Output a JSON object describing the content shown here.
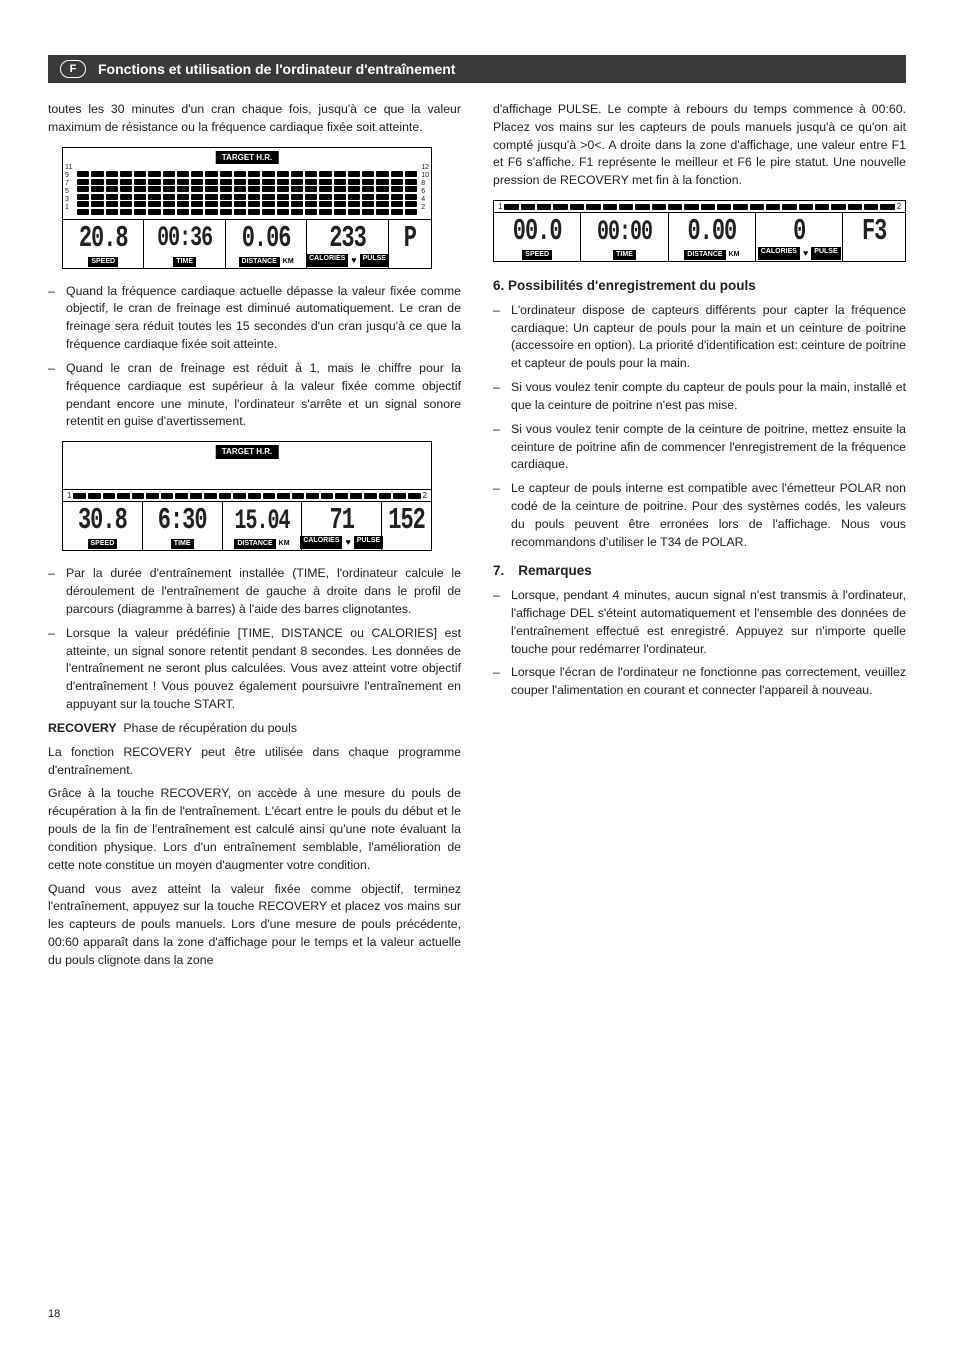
{
  "header": {
    "lang_badge": "F",
    "title": "Fonctions et utilisation de l'ordinateur d'entraînement"
  },
  "col_left": {
    "intro_p": "toutes les 30 minutes d'un cran chaque fois, jusqu'à ce que la valeur maximum de résistance ou la fréquence cardiaque fixée soit atteinte.",
    "display1": {
      "target_label": "TARGET H.R.",
      "y_left": [
        "11",
        "9",
        "7",
        "5",
        "3",
        "1"
      ],
      "y_right": [
        "12",
        "10",
        "8",
        "6",
        "4",
        "2"
      ],
      "bar_heights": [
        6,
        6,
        6,
        6,
        6,
        6,
        6,
        6,
        6,
        6,
        6,
        6,
        6,
        6,
        6,
        6,
        6,
        6,
        6,
        6,
        6,
        6,
        6,
        6
      ],
      "speed": "20.8",
      "time": "00:36",
      "distance": "0.06",
      "calories": "233",
      "pulse": "P",
      "labels": {
        "speed": "SPEED",
        "time": "TIME",
        "distance": "DISTANCE",
        "km": "KM",
        "calories": "CALORIES",
        "pulse": "PULSE"
      }
    },
    "bullets1": [
      "Quand la fréquence cardiaque actuelle dépasse la valeur fixée comme objectif, le cran de freinage est diminué automatiquement. Le cran de freinage sera réduit toutes les 15 secondes d'un cran jusqu'à ce que la fréquence cardiaque fixée soit atteinte.",
      "Quand le cran de freinage est réduit à 1, mais le chiffre pour la fréquence cardiaque est supérieur à la valeur fixée comme objectif pendant encore une minute, l'ordinateur s'arrête et un signal sonore retentit en guise d'avertissement."
    ],
    "display2": {
      "target_label": "TARGET H.R.",
      "prog_left": "1",
      "prog_right": "2",
      "speed": "30.8",
      "time": "6:30",
      "distance": "15.04",
      "calories": "71",
      "pulse": "152",
      "labels": {
        "speed": "SPEED",
        "time": "TIME",
        "distance": "DISTANCE",
        "km": "KM",
        "calories": "CALORIES",
        "pulse": "PULSE"
      }
    },
    "bullets2": [
      "Par la durée d'entraînement installée (TIME, l'ordinateur calcule le déroulement de l'entraînement de gauche à droite dans le profil de parcours (diagramme à barres) à l'aide des barres clignotantes.",
      "Lorsque la valeur prédéfinie [TIME, DISTANCE ou CALORIES] est atteinte, un signal sonore retentit pendant 8 secondes. Les données de l'entraînement ne seront plus calculées. Vous avez atteint votre objectif d'entraînement ! Vous pouvez également poursuivre l'entraînement en appuyant sur la touche START."
    ],
    "recovery_label": "RECOVERY",
    "recovery_sub": "Phase de récupération du pouls",
    "recovery_p1": "La fonction RECOVERY peut être utilisée dans chaque programme d'entraînement.",
    "recovery_p2": "Grâce à la touche RECOVERY, on accède à une mesure du pouls de récupération à la fin de l'entraînement. L'écart entre le pouls du début et le pouls de la fin de l'entraînement est calculé ainsi qu'une note évaluant la condition physique. Lors d'un entraînement semblable, l'amélioration de cette note constitue un moyen d'augmenter votre condition.",
    "recovery_p3": "Quand vous avez atteint la valeur fixée comme objectif, terminez l'entraînement, appuyez sur la touche RECOVERY et placez vos mains sur les capteurs de pouls manuels. Lors d'une mesure de pouls précédente, 00:60 apparaît dans la zone d'affichage pour le temps et la valeur actuelle du pouls clignote dans la zone"
  },
  "col_right": {
    "cont_p": "d'affichage PULSE. Le compte à rebours du temps commence à 00:60. Placez vos mains sur les capteurs de pouls manuels jusqu'à ce qu'on ait compté jusqu'à >0<. A droite dans la zone d'affichage, une valeur entre F1 et F6 s'affiche. F1 représente le meilleur et F6 le pire statut. Une nouvelle pression de RECOVERY met fin à la fonction.",
    "display3": {
      "prog_left": "1",
      "prog_right": "2",
      "speed": "00.0",
      "time": "00:00",
      "distance": "0.00",
      "calories": "0",
      "pulse": "F3",
      "labels": {
        "speed": "SPEED",
        "time": "TIME",
        "distance": "DISTANCE",
        "km": "KM",
        "calories": "CALORIES",
        "pulse": "PULSE"
      }
    },
    "section6_title": "6. Possibilités d'enregistrement du pouls",
    "section6_bullets": [
      "L'ordinateur dispose de capteurs différents pour capter la fréquence cardiaque: Un capteur de pouls pour la main et un ceinture de poitrine (accessoire en option). La priorité d'identification est: ceinture de poitrine et capteur de pouls pour la main.",
      "Si vous voulez tenir compte du capteur de pouls pour la main, installé et que la ceinture de poitrine n'est pas mise.",
      "Si vous voulez tenir compte de la ceinture de poitrine, mettez ensuite la ceinture de poitrine afin de commencer l'enregistrement de la fréquence cardiaque.",
      "Le capteur de pouls interne est compatible avec l'émetteur POLAR non codé de la ceinture de poitrine. Pour des systèmes codés, les valeurs du pouls peuvent être erronées lors de l'affichage. Nous vous recommandons d'utiliser le T34 de POLAR."
    ],
    "section7_num": "7.",
    "section7_title": "Remarques",
    "section7_bullets": [
      "Lorsque, pendant 4 minutes, aucun signal n'est transmis à l'ordinateur, l'affichage DEL s'éteint automatiquement et l'ensemble des données de l'entraînement effectué est enregistré. Appuyez sur n'importe quelle touche pour redémarrer l'ordinateur.",
      "Lorsque l'écran de l'ordinateur ne fonctionne pas correctement, veuillez couper l'alimentation en courant et connecter l'appareil à nouveau."
    ]
  },
  "page_number": "18",
  "colors": {
    "header_bg": "#3a3a3a",
    "text": "#222222",
    "black": "#000000",
    "white": "#ffffff"
  }
}
